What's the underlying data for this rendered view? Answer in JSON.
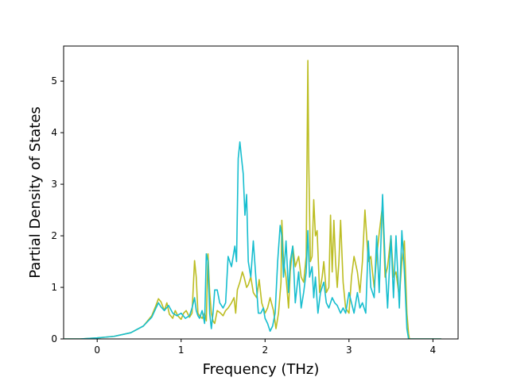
{
  "chart_data": {
    "type": "line",
    "title": "",
    "xlabel": "Frequency (THz)",
    "ylabel": "Partial Density of States",
    "xlim": [
      -0.4,
      4.3
    ],
    "ylim": [
      0,
      5.68
    ],
    "xticks": [
      0,
      1,
      2,
      3,
      4
    ],
    "yticks": [
      0,
      1,
      2,
      3,
      4,
      5
    ],
    "grid": false,
    "legend": "none",
    "series": [
      {
        "color": "#bcbd22",
        "x": [
          -0.39,
          -0.2,
          0,
          0.2,
          0.4,
          0.55,
          0.65,
          0.7,
          0.73,
          0.76,
          0.8,
          0.83,
          0.86,
          0.9,
          0.93,
          0.96,
          1,
          1.03,
          1.06,
          1.1,
          1.13,
          1.16,
          1.18,
          1.2,
          1.22,
          1.25,
          1.28,
          1.3,
          1.32,
          1.34,
          1.36,
          1.38,
          1.4,
          1.43,
          1.47,
          1.5,
          1.53,
          1.56,
          1.6,
          1.63,
          1.65,
          1.67,
          1.7,
          1.73,
          1.75,
          1.78,
          1.8,
          1.83,
          1.86,
          1.9,
          1.93,
          1.96,
          2,
          2.03,
          2.06,
          2.1,
          2.13,
          2.16,
          2.19,
          2.2,
          2.22,
          2.25,
          2.28,
          2.3,
          2.33,
          2.36,
          2.4,
          2.43,
          2.46,
          2.49,
          2.51,
          2.52,
          2.54,
          2.56,
          2.58,
          2.6,
          2.62,
          2.65,
          2.68,
          2.7,
          2.73,
          2.76,
          2.78,
          2.8,
          2.82,
          2.84,
          2.86,
          2.88,
          2.9,
          2.93,
          2.96,
          3,
          3.03,
          3.06,
          3.1,
          3.13,
          3.16,
          3.19,
          3.21,
          3.23,
          3.26,
          3.3,
          3.33,
          3.36,
          3.4,
          3.43,
          3.46,
          3.5,
          3.53,
          3.56,
          3.6,
          3.63,
          3.66,
          3.69,
          3.71,
          3.72,
          3.8,
          4.1
        ],
        "y": [
          0,
          0,
          0.02,
          0.05,
          0.12,
          0.25,
          0.45,
          0.65,
          0.78,
          0.72,
          0.55,
          0.7,
          0.48,
          0.4,
          0.55,
          0.45,
          0.38,
          0.5,
          0.55,
          0.42,
          0.5,
          1.52,
          1.2,
          0.5,
          0.45,
          0.4,
          0.5,
          0.35,
          1.65,
          0.9,
          0.5,
          0.35,
          0.3,
          0.55,
          0.5,
          0.45,
          0.55,
          0.6,
          0.7,
          0.8,
          0.5,
          0.95,
          1.1,
          1.3,
          1.2,
          1,
          1.05,
          1.2,
          0.9,
          0.8,
          1.15,
          0.7,
          0.5,
          0.6,
          0.8,
          0.55,
          0.2,
          0.5,
          1.1,
          2.3,
          1.5,
          1.2,
          0.6,
          1.3,
          1.8,
          1.4,
          1.6,
          1.2,
          1.1,
          1.6,
          5.4,
          3.5,
          1.5,
          1.6,
          2.7,
          2,
          2.1,
          0.9,
          1.2,
          1.5,
          0.9,
          1,
          2.4,
          1.3,
          2.3,
          1.5,
          1,
          1.5,
          2.3,
          1.1,
          0.6,
          0.5,
          1.2,
          1.6,
          1.3,
          0.9,
          1.5,
          2.5,
          2,
          1.5,
          1.6,
          1,
          1.6,
          2.05,
          2.6,
          1.2,
          1.4,
          2,
          1.2,
          1.3,
          0.8,
          1.5,
          1.9,
          0.5,
          0.1,
          0,
          0,
          0
        ],
        "width": 1.6
      },
      {
        "color": "#17becf",
        "x": [
          -0.39,
          -0.2,
          0,
          0.2,
          0.4,
          0.55,
          0.65,
          0.7,
          0.73,
          0.76,
          0.8,
          0.85,
          0.9,
          0.95,
          1,
          1.05,
          1.1,
          1.13,
          1.16,
          1.18,
          1.2,
          1.22,
          1.25,
          1.28,
          1.3,
          1.32,
          1.34,
          1.36,
          1.38,
          1.4,
          1.43,
          1.46,
          1.5,
          1.53,
          1.56,
          1.6,
          1.62,
          1.64,
          1.66,
          1.68,
          1.7,
          1.72,
          1.74,
          1.76,
          1.78,
          1.8,
          1.83,
          1.86,
          1.89,
          1.92,
          1.95,
          1.98,
          2,
          2.03,
          2.06,
          2.09,
          2.12,
          2.15,
          2.18,
          2.2,
          2.22,
          2.25,
          2.28,
          2.3,
          2.33,
          2.36,
          2.4,
          2.43,
          2.46,
          2.49,
          2.51,
          2.53,
          2.56,
          2.58,
          2.6,
          2.63,
          2.66,
          2.7,
          2.73,
          2.76,
          2.8,
          2.83,
          2.86,
          2.9,
          2.93,
          2.96,
          3,
          3.03,
          3.06,
          3.1,
          3.13,
          3.16,
          3.2,
          3.23,
          3.26,
          3.3,
          3.33,
          3.36,
          3.4,
          3.43,
          3.46,
          3.5,
          3.53,
          3.56,
          3.6,
          3.63,
          3.66,
          3.69,
          3.71,
          3.72,
          3.8,
          4.1
        ],
        "y": [
          0,
          0,
          0.02,
          0.05,
          0.12,
          0.25,
          0.42,
          0.6,
          0.7,
          0.62,
          0.55,
          0.65,
          0.5,
          0.45,
          0.5,
          0.4,
          0.45,
          0.6,
          0.8,
          0.55,
          0.45,
          0.4,
          0.55,
          0.3,
          1.65,
          1.5,
          0.5,
          0.2,
          0.5,
          0.95,
          0.95,
          0.7,
          0.6,
          0.7,
          1.6,
          1.4,
          1.6,
          1.8,
          1.5,
          3.5,
          3.82,
          3.5,
          3.2,
          2.4,
          2.8,
          1.5,
          1.2,
          1.9,
          1.2,
          0.5,
          0.5,
          0.6,
          0.4,
          0.3,
          0.15,
          0.25,
          0.5,
          1.5,
          2.2,
          2,
          1.2,
          1.9,
          0.9,
          1.5,
          1.8,
          0.7,
          1.3,
          0.6,
          0.9,
          1.3,
          2.1,
          1.2,
          1.4,
          0.8,
          1.2,
          0.5,
          0.9,
          1.1,
          0.7,
          0.6,
          0.8,
          0.7,
          0.65,
          0.5,
          0.6,
          0.5,
          0.9,
          0.7,
          0.5,
          0.9,
          0.6,
          0.7,
          0.5,
          1.9,
          1,
          0.8,
          2,
          0.9,
          2.8,
          1.5,
          0.6,
          2,
          0.8,
          2,
          0.6,
          2.1,
          1.3,
          0.2,
          0,
          0,
          0,
          0
        ],
        "width": 1.6
      }
    ]
  }
}
